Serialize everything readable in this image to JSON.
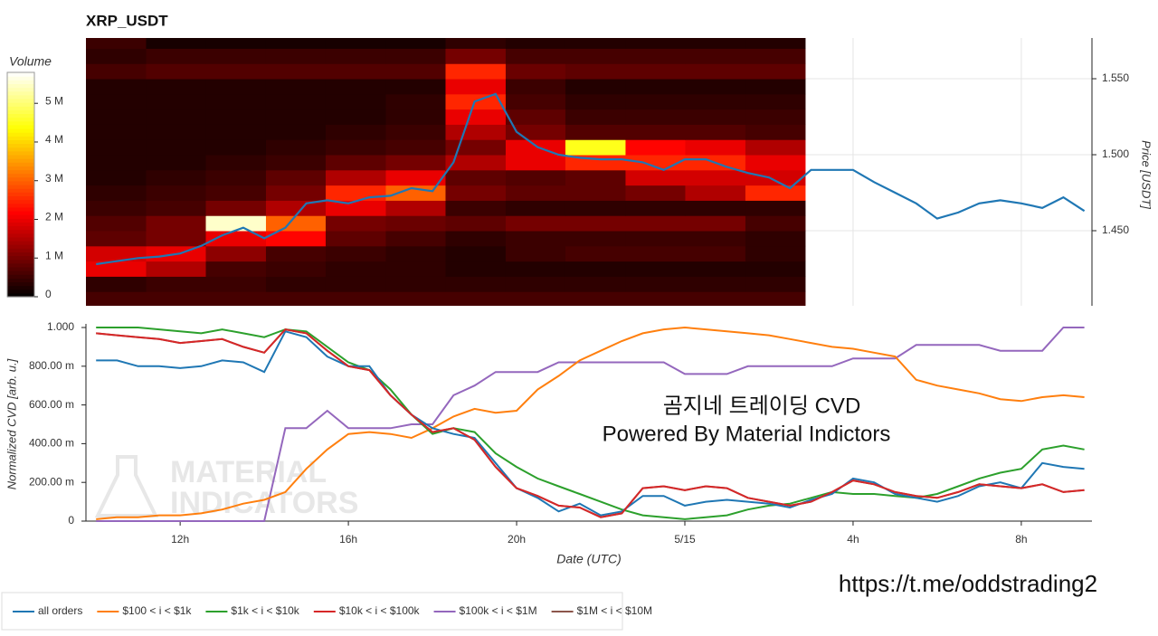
{
  "chart_data": [
    {
      "type": "heatmap",
      "title": "XRP_USDT",
      "xlim": [
        9.76,
        33.68
      ],
      "xticks": [
        12,
        16,
        20,
        24,
        28,
        32
      ],
      "xbins": [
        9.76,
        11.19,
        12.61,
        14.04,
        15.46,
        16.89,
        18.31,
        19.74,
        21.16,
        22.59,
        24.01,
        25.44,
        26.86
      ],
      "ybins": [
        1.4,
        1.41,
        1.42,
        1.43,
        1.44,
        1.45,
        1.46,
        1.47,
        1.48,
        1.49,
        1.5,
        1.51,
        1.52,
        1.53,
        1.54,
        1.55,
        1.56,
        1.57,
        1.58
      ],
      "z": [
        [
          0.6,
          0.6,
          0.6,
          0.6,
          0.6,
          0.6,
          0.6,
          0.6,
          0.6,
          0.6,
          0.6,
          0.6
        ],
        [
          0.4,
          0.5,
          0.5,
          0.4,
          0.4,
          0.4,
          0.4,
          0.4,
          0.4,
          0.4,
          0.4,
          0.4
        ],
        [
          2.0,
          1.5,
          0.6,
          0.5,
          0.4,
          0.4,
          0.3,
          0.3,
          0.3,
          0.3,
          0.3,
          0.3
        ],
        [
          1.8,
          2.0,
          1.2,
          0.6,
          0.5,
          0.4,
          0.3,
          0.5,
          0.6,
          0.6,
          0.6,
          0.4
        ],
        [
          0.8,
          1.0,
          2.0,
          2.2,
          0.8,
          0.6,
          0.4,
          0.5,
          0.5,
          0.5,
          0.5,
          0.4
        ],
        [
          0.7,
          1.0,
          5.5,
          3.0,
          1.0,
          0.9,
          0.8,
          1.0,
          1.0,
          1.0,
          1.0,
          0.6
        ],
        [
          0.5,
          0.6,
          1.0,
          1.5,
          2.0,
          1.5,
          0.5,
          0.4,
          0.4,
          0.4,
          0.4,
          0.4
        ],
        [
          0.4,
          0.5,
          0.6,
          1.0,
          2.5,
          3.0,
          1.0,
          0.8,
          0.8,
          1.0,
          1.5,
          2.5
        ],
        [
          0.3,
          0.4,
          0.5,
          0.8,
          1.5,
          2.0,
          0.8,
          0.7,
          0.8,
          1.8,
          1.8,
          1.8
        ],
        [
          0.3,
          0.3,
          0.4,
          0.5,
          0.8,
          1.0,
          1.5,
          2.0,
          2.5,
          2.5,
          2.5,
          2.0
        ],
        [
          0.3,
          0.3,
          0.3,
          0.4,
          0.5,
          0.6,
          1.0,
          2.0,
          4.5,
          2.2,
          2.0,
          1.5
        ],
        [
          0.3,
          0.3,
          0.3,
          0.3,
          0.4,
          0.5,
          1.5,
          1.0,
          0.7,
          0.7,
          0.7,
          0.6
        ],
        [
          0.3,
          0.3,
          0.3,
          0.3,
          0.3,
          0.4,
          2.0,
          0.8,
          0.5,
          0.5,
          0.5,
          0.5
        ],
        [
          0.3,
          0.3,
          0.3,
          0.3,
          0.3,
          0.4,
          2.5,
          0.6,
          0.4,
          0.4,
          0.4,
          0.4
        ],
        [
          0.3,
          0.3,
          0.3,
          0.3,
          0.3,
          0.3,
          2.0,
          0.5,
          0.3,
          0.3,
          0.3,
          0.3
        ],
        [
          0.6,
          0.7,
          0.7,
          0.7,
          0.7,
          0.7,
          2.5,
          0.9,
          0.8,
          0.8,
          0.8,
          0.8
        ],
        [
          0.4,
          0.5,
          0.5,
          0.5,
          0.5,
          0.5,
          1.0,
          0.6,
          0.6,
          0.6,
          0.6,
          0.6
        ],
        [
          0.5,
          0.2,
          0.2,
          0.2,
          0.2,
          0.2,
          0.4,
          0.3,
          0.3,
          0.3,
          0.3,
          0.3
        ]
      ],
      "colorbar": {
        "label": "Volume",
        "clim": [
          0,
          5.8
        ],
        "ticks": [
          0,
          {
            "value": 1,
            "label": "1 M"
          },
          {
            "value": 2,
            "label": "2 M"
          },
          {
            "value": 3,
            "label": "3 M"
          },
          {
            "value": 4,
            "label": "4 M"
          },
          {
            "value": 5,
            "label": "5 M"
          }
        ]
      },
      "y2label": "Price [USDT]",
      "y2lim": [
        1.4006,
        1.5768
      ],
      "y2ticks": [
        {
          "value": 1.45,
          "label": "1.450"
        },
        {
          "value": 1.5,
          "label": "1.500"
        },
        {
          "value": 1.55,
          "label": "1.550"
        }
      ],
      "x": [
        10,
        10.5,
        11,
        11.5,
        12,
        12.5,
        13,
        13.5,
        14,
        14.5,
        15,
        15.5,
        16,
        16.5,
        17,
        17.5,
        18,
        18.5,
        19,
        19.5,
        20,
        20.5,
        21,
        21.5,
        22,
        22.5,
        23,
        23.5,
        24,
        24.5,
        25,
        25.5,
        26,
        26.5,
        27,
        27.5,
        28,
        28.5,
        29,
        29.5,
        30,
        30.5,
        31,
        31.5,
        32,
        32.5,
        33,
        33.5
      ],
      "price": {
        "color": "#1f77b4",
        "axis": "y2",
        "values": [
          1.428,
          1.43,
          1.432,
          1.433,
          1.435,
          1.44,
          1.447,
          1.452,
          1.445,
          1.452,
          1.468,
          1.47,
          1.468,
          1.472,
          1.473,
          1.478,
          1.476,
          1.495,
          1.535,
          1.54,
          1.515,
          1.505,
          1.5,
          1.498,
          1.497,
          1.497,
          1.495,
          1.49,
          1.497,
          1.497,
          1.492,
          1.488,
          1.485,
          1.478,
          1.49,
          1.49,
          1.49,
          1.482,
          1.475,
          1.468,
          1.458,
          1.462,
          1.468,
          1.47,
          1.468,
          1.465,
          1.472,
          1.463
        ]
      }
    },
    {
      "type": "line",
      "xlabel": "Date (UTC)",
      "ylabel": "Normalized CVD [arb. u.]",
      "xlim": [
        9.76,
        33.68
      ],
      "xticks": [
        {
          "value": 12,
          "label": "12h"
        },
        {
          "value": 16,
          "label": "16h"
        },
        {
          "value": 20,
          "label": "20h"
        },
        {
          "value": 24,
          "label": "5/15"
        },
        {
          "value": 28,
          "label": "4h"
        },
        {
          "value": 32,
          "label": "8h"
        }
      ],
      "ylim": [
        0,
        1
      ],
      "yticks": [
        0,
        {
          "value": 0.2,
          "label": "200.00 m"
        },
        {
          "value": 0.4,
          "label": "400.00 m"
        },
        {
          "value": 0.6,
          "label": "600.00 m"
        },
        {
          "value": 0.8,
          "label": "800.00 m"
        },
        {
          "value": 1,
          "label": "1.000"
        }
      ],
      "x": [
        10,
        10.5,
        11,
        11.5,
        12,
        12.5,
        13,
        13.5,
        14,
        14.5,
        15,
        15.5,
        16,
        16.5,
        17,
        17.5,
        18,
        18.5,
        19,
        19.5,
        20,
        20.5,
        21,
        21.5,
        22,
        22.5,
        23,
        23.5,
        24,
        24.5,
        25,
        25.5,
        26,
        26.5,
        27,
        27.5,
        28,
        28.5,
        29,
        29.5,
        30,
        30.5,
        31,
        31.5,
        32,
        32.5,
        33,
        33.5
      ],
      "series": [
        {
          "name": "all orders",
          "color": "#1f77b4",
          "values": [
            0.83,
            0.83,
            0.8,
            0.8,
            0.79,
            0.8,
            0.83,
            0.82,
            0.77,
            0.98,
            0.95,
            0.85,
            0.8,
            0.8,
            0.65,
            0.55,
            0.48,
            0.45,
            0.43,
            0.3,
            0.17,
            0.12,
            0.05,
            0.09,
            0.03,
            0.05,
            0.13,
            0.13,
            0.08,
            0.1,
            0.11,
            0.1,
            0.09,
            0.07,
            0.11,
            0.14,
            0.22,
            0.2,
            0.14,
            0.12,
            0.1,
            0.13,
            0.18,
            0.2,
            0.17,
            0.3,
            0.28,
            0.27
          ]
        },
        {
          "name": "$100 < i < $1k",
          "color": "#ff7f0e",
          "values": [
            0.01,
            0.02,
            0.02,
            0.03,
            0.03,
            0.04,
            0.06,
            0.09,
            0.11,
            0.15,
            0.27,
            0.37,
            0.45,
            0.46,
            0.45,
            0.43,
            0.48,
            0.54,
            0.58,
            0.56,
            0.57,
            0.68,
            0.75,
            0.83,
            0.88,
            0.93,
            0.97,
            0.99,
            1.0,
            0.99,
            0.98,
            0.97,
            0.96,
            0.94,
            0.92,
            0.9,
            0.89,
            0.87,
            0.85,
            0.73,
            0.7,
            0.68,
            0.66,
            0.63,
            0.62,
            0.64,
            0.65,
            0.64
          ]
        },
        {
          "name": "$1k < i < $10k",
          "color": "#2ca02c",
          "values": [
            1.0,
            1.0,
            1.0,
            0.99,
            0.98,
            0.97,
            0.99,
            0.97,
            0.95,
            0.99,
            0.98,
            0.9,
            0.82,
            0.78,
            0.68,
            0.55,
            0.45,
            0.48,
            0.46,
            0.35,
            0.28,
            0.22,
            0.18,
            0.14,
            0.1,
            0.06,
            0.03,
            0.02,
            0.01,
            0.02,
            0.03,
            0.06,
            0.08,
            0.09,
            0.12,
            0.15,
            0.14,
            0.14,
            0.13,
            0.12,
            0.14,
            0.18,
            0.22,
            0.25,
            0.27,
            0.37,
            0.39,
            0.37
          ]
        },
        {
          "name": "$10k < i < $100k",
          "color": "#d62728",
          "values": [
            0.97,
            0.96,
            0.95,
            0.94,
            0.92,
            0.93,
            0.94,
            0.9,
            0.87,
            0.99,
            0.97,
            0.88,
            0.8,
            0.78,
            0.65,
            0.55,
            0.46,
            0.48,
            0.42,
            0.28,
            0.17,
            0.13,
            0.08,
            0.07,
            0.02,
            0.04,
            0.17,
            0.18,
            0.16,
            0.18,
            0.17,
            0.12,
            0.1,
            0.08,
            0.1,
            0.15,
            0.21,
            0.19,
            0.15,
            0.13,
            0.12,
            0.15,
            0.19,
            0.18,
            0.17,
            0.19,
            0.15,
            0.16
          ]
        },
        {
          "name": "$100k < i < $1M",
          "color": "#9467bd",
          "values": [
            0,
            0,
            0,
            0,
            0,
            0,
            0,
            0,
            0,
            0.48,
            0.48,
            0.57,
            0.48,
            0.48,
            0.48,
            0.5,
            0.5,
            0.65,
            0.7,
            0.77,
            0.77,
            0.77,
            0.82,
            0.82,
            0.82,
            0.82,
            0.82,
            0.82,
            0.76,
            0.76,
            0.76,
            0.8,
            0.8,
            0.8,
            0.8,
            0.8,
            0.84,
            0.84,
            0.84,
            0.91,
            0.91,
            0.91,
            0.91,
            0.88,
            0.88,
            0.88,
            1.0,
            1.0
          ]
        },
        {
          "name": "$1M < i < $10M",
          "color": "#8c564b",
          "values": [
            0.97,
            0.96,
            0.95,
            0.94,
            0.92,
            0.93,
            0.94,
            0.9,
            0.87,
            0.99,
            0.97,
            0.88,
            0.8,
            0.78,
            0.65,
            0.55,
            0.46,
            0.48,
            0.42,
            0.28,
            0.17,
            0.13,
            0.08,
            0.07,
            0.02,
            0.04,
            0.17,
            0.18,
            0.16,
            0.18,
            0.17,
            0.12,
            0.1,
            0.08,
            0.1,
            0.15,
            0.21,
            0.19,
            0.15,
            0.13,
            0.12,
            0.15,
            0.19,
            0.18,
            0.17,
            0.19,
            0.15,
            0.16
          ]
        }
      ],
      "annotations": [
        "곰지네 트레이딩 CVD",
        "Powered By Material Indictors"
      ],
      "watermark": [
        "MATERIAL",
        "INDICATORS"
      ]
    }
  ],
  "source": "https://t.me/oddstrading2"
}
